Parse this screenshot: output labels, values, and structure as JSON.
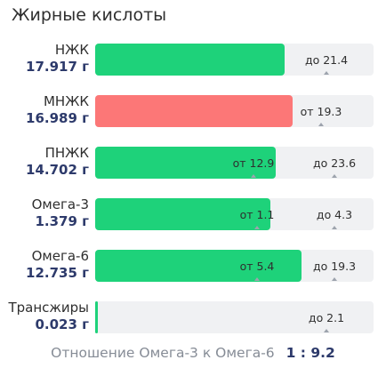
{
  "title": "Жирные кислоты",
  "rows": [
    {
      "name": "НЖК",
      "amount": "17.917 г",
      "color": "#1ed27a",
      "fill_fraction": 0.68,
      "markers": [
        {
          "label": "до 21.4",
          "pos": 0.83
        }
      ]
    },
    {
      "name": "МНЖК",
      "amount": "16.989 г",
      "color": "#fc7777",
      "fill_fraction": 0.71,
      "markers": [
        {
          "label": "от 19.3",
          "pos": 0.81
        }
      ]
    },
    {
      "name": "ПНЖК",
      "amount": "14.702 г",
      "color": "#1ed27a",
      "fill_fraction": 0.65,
      "markers": [
        {
          "label": "от 12.9",
          "pos": 0.57
        },
        {
          "label": "до 23.6",
          "pos": 0.86
        }
      ]
    },
    {
      "name": "Омега-3",
      "amount": "1.379 г",
      "color": "#1ed27a",
      "fill_fraction": 0.63,
      "markers": [
        {
          "label": "от 1.1",
          "pos": 0.58
        },
        {
          "label": "до 4.3",
          "pos": 0.86
        }
      ]
    },
    {
      "name": "Омега-6",
      "amount": "12.735 г",
      "color": "#1ed27a",
      "fill_fraction": 0.74,
      "markers": [
        {
          "label": "от 5.4",
          "pos": 0.58
        },
        {
          "label": "до 19.3",
          "pos": 0.86
        }
      ]
    },
    {
      "name": "Трансжиры",
      "amount": "0.023 г",
      "color": "#1ed27a",
      "fill_fraction": 0.01,
      "markers": [
        {
          "label": "до 2.1",
          "pos": 0.83
        }
      ]
    }
  ],
  "ratio": {
    "label": "Отношение Омега-3 к Омега-6",
    "value": "1 : 9.2"
  }
}
